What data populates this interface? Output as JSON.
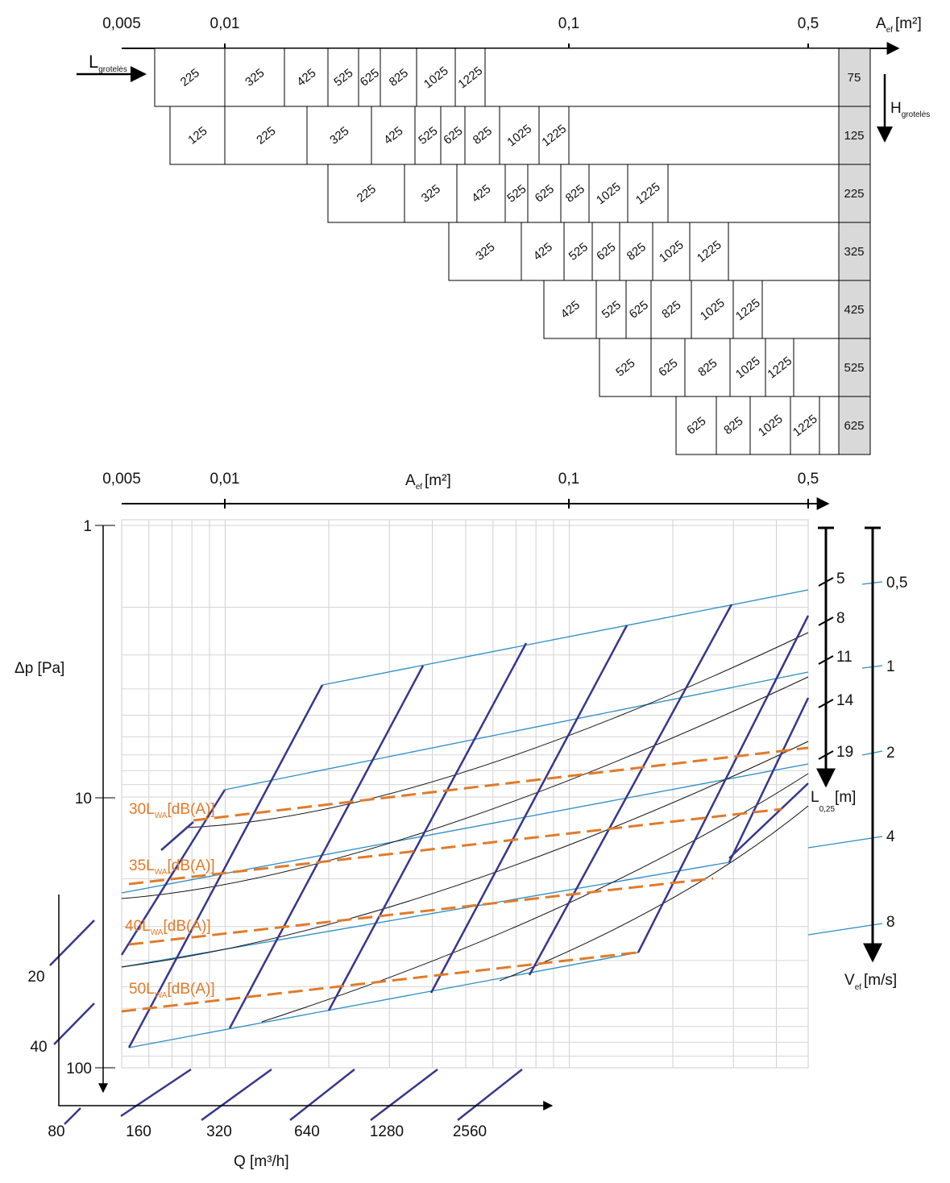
{
  "top_axis": {
    "ticks": [
      "0,005",
      "0,01",
      "0,1",
      "0,5"
    ],
    "label": {
      "main": "A",
      "sub": "ef",
      "unit": "[m²]"
    }
  },
  "grille_table": {
    "length_label": {
      "main": "L",
      "sub": "grotelės"
    },
    "height_label": {
      "main": "H",
      "sub": "grotelės"
    },
    "rows": [
      {
        "height": "75",
        "lengths": [
          "225",
          "325",
          "425",
          "525",
          "625",
          "825",
          "1025",
          "1225"
        ]
      },
      {
        "height": "125",
        "lengths": [
          "125",
          "225",
          "325",
          "425",
          "525",
          "625",
          "825",
          "1025",
          "1225"
        ]
      },
      {
        "height": "225",
        "lengths": [
          "225",
          "325",
          "425",
          "525",
          "625",
          "825",
          "1025",
          "1225"
        ]
      },
      {
        "height": "325",
        "lengths": [
          "325",
          "425",
          "525",
          "625",
          "825",
          "1025",
          "1225"
        ]
      },
      {
        "height": "425",
        "lengths": [
          "425",
          "525",
          "625",
          "825",
          "1025",
          "1225"
        ]
      },
      {
        "height": "525",
        "lengths": [
          "525",
          "625",
          "825",
          "1025",
          "1225"
        ]
      },
      {
        "height": "625",
        "lengths": [
          "625",
          "825",
          "1025",
          "1225"
        ]
      }
    ]
  },
  "chart": {
    "area_axis": {
      "ticks": [
        "0,005",
        "0,01",
        "0,1",
        "0,5"
      ],
      "label": {
        "main": "A",
        "sub": "ef",
        "unit": "[m²]"
      }
    },
    "pressure_axis": {
      "label": "Δp [Pa]",
      "ticks": [
        "1",
        "10",
        "100"
      ]
    },
    "throw_axis": {
      "ticks": [
        "5",
        "8",
        "11",
        "14",
        "19"
      ],
      "label": {
        "main": "L",
        "sub": "0,25",
        "unit": "[m]"
      }
    },
    "velocity_axis": {
      "ticks": [
        "0,5",
        "1",
        "2",
        "4",
        "8"
      ],
      "label": {
        "main": "V",
        "sub": "ef",
        "unit": "[m/s]"
      }
    },
    "flow_axis": {
      "label": "Q [m³/h]",
      "ticks": [
        "80",
        "160",
        "320",
        "640",
        "1280",
        "2560"
      ]
    },
    "side_ticks": [
      "20",
      "40"
    ],
    "sound_labels": [
      {
        "level": "30",
        "symbol": "L",
        "sub": "WA",
        "unit": "[dB(A)]"
      },
      {
        "level": "35",
        "symbol": "L",
        "sub": "WA",
        "unit": "[dB(A)]"
      },
      {
        "level": "40",
        "symbol": "L",
        "sub": "WA",
        "unit": "[dB(A)]"
      },
      {
        "level": "50",
        "symbol": "L",
        "sub": "WA",
        "unit": "[dB(A)]"
      }
    ]
  }
}
